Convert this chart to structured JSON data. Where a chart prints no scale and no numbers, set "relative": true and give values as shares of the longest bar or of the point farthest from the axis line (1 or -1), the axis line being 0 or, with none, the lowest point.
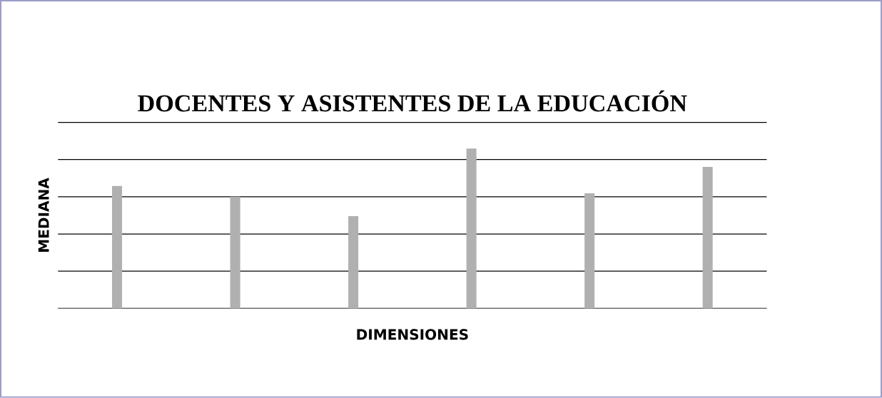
{
  "chart_data": {
    "type": "bar",
    "title": "DOCENTES Y ASISTENTES DE LA EDUCACIÓN",
    "xlabel": "DIMENSIONES",
    "ylabel": "MEDIANA",
    "categories": [
      null,
      null,
      null,
      null,
      null,
      null
    ],
    "values": [
      0.766,
      0.699,
      0.577,
      1,
      0.72,
      0.885
    ],
    "color": "#b0b0b0",
    "relative": true,
    "grid": "y"
  }
}
